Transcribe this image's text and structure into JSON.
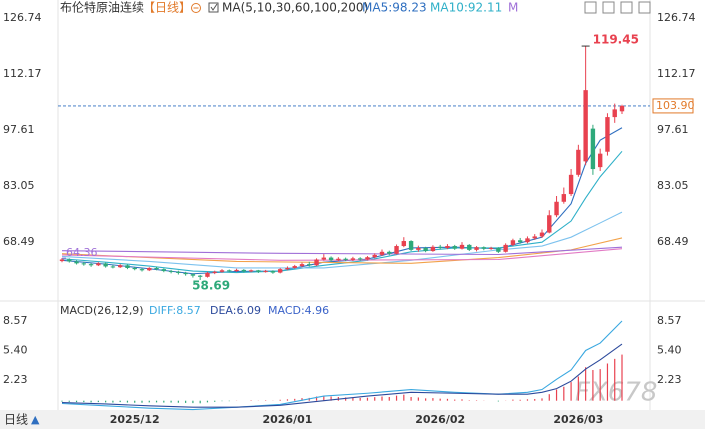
{
  "chart_data": [
    {
      "type": "candlestick",
      "title": "布伦特原油连续",
      "period": "【日线】",
      "ma_label": "MA(5,10,30,60,100,200)",
      "legend_overflow": "M",
      "categories": [
        null,
        null,
        null,
        null,
        null,
        null,
        null,
        null,
        null,
        null,
        "2025/12",
        null,
        null,
        null,
        null,
        null,
        null,
        null,
        null,
        null,
        null,
        null,
        null,
        null,
        null,
        null,
        null,
        null,
        null,
        null,
        null,
        "2026/01",
        null,
        null,
        null,
        null,
        null,
        null,
        null,
        null,
        null,
        null,
        null,
        null,
        null,
        null,
        null,
        null,
        null,
        null,
        null,
        null,
        "2026/02",
        null,
        null,
        null,
        null,
        null,
        null,
        null,
        null,
        null,
        null,
        null,
        null,
        null,
        null,
        null,
        null,
        null,
        null,
        "2026/03",
        null,
        null,
        null,
        null,
        null,
        null
      ],
      "candles": {
        "up_color": "#e8414f",
        "down_color": "#2ea97a",
        "open": [
          63.6,
          64.0,
          63.5,
          63.0,
          62.8,
          62.5,
          63.0,
          62.2,
          62.0,
          62.5,
          61.8,
          61.5,
          61.2,
          61.8,
          61.5,
          61.0,
          60.8,
          60.5,
          60.2,
          59.8,
          59.5,
          60.5,
          60.8,
          61.2,
          61.0,
          61.3,
          60.9,
          61.2,
          60.8,
          61.0,
          60.6,
          61.5,
          61.8,
          62.3,
          62.8,
          62.5,
          64.0,
          64.5,
          63.8,
          64.2,
          63.9,
          64.3,
          64.0,
          64.6,
          65.2,
          66.0,
          65.5,
          67.5,
          68.8,
          66.5,
          67.0,
          66.2,
          67.3,
          67.0,
          67.5,
          66.8,
          67.8,
          66.5,
          67.2,
          66.8,
          67.0,
          66.0,
          67.8,
          69.0,
          68.5,
          69.5,
          70.0,
          71.0,
          75.5,
          79.0,
          81.0,
          86.0,
          89.5,
          98.0,
          88.0,
          92.0,
          101.0,
          102.5
        ],
        "close": [
          64.0,
          63.5,
          63.0,
          62.8,
          62.5,
          63.0,
          62.2,
          62.0,
          62.5,
          61.8,
          61.5,
          61.2,
          61.8,
          61.5,
          61.0,
          60.8,
          60.5,
          60.2,
          59.8,
          59.5,
          60.5,
          60.8,
          61.2,
          61.0,
          61.3,
          60.9,
          61.2,
          60.8,
          61.0,
          60.6,
          61.5,
          61.8,
          62.3,
          62.8,
          62.5,
          64.0,
          64.5,
          63.8,
          64.2,
          63.9,
          64.3,
          64.0,
          64.6,
          65.2,
          66.0,
          65.5,
          67.5,
          68.8,
          66.5,
          67.0,
          66.2,
          67.3,
          67.0,
          67.5,
          66.8,
          67.8,
          66.5,
          67.2,
          66.8,
          67.0,
          66.0,
          67.8,
          69.0,
          68.5,
          69.5,
          70.0,
          71.0,
          75.5,
          79.0,
          81.0,
          86.0,
          92.5,
          108.0,
          87.5,
          91.5,
          101.0,
          103.0,
          103.9
        ],
        "high": [
          64.4,
          64.3,
          63.8,
          63.4,
          63.1,
          63.3,
          63.2,
          62.6,
          62.8,
          62.7,
          62.1,
          61.8,
          62.0,
          62.1,
          61.7,
          61.3,
          61.1,
          60.8,
          60.4,
          60.0,
          60.8,
          61.1,
          61.5,
          61.4,
          61.6,
          61.5,
          61.4,
          61.3,
          61.3,
          61.2,
          61.8,
          62.2,
          62.6,
          63.2,
          63.4,
          64.3,
          65.4,
          64.8,
          64.6,
          64.5,
          64.7,
          64.6,
          64.9,
          65.6,
          66.6,
          66.3,
          67.9,
          69.8,
          69.0,
          67.6,
          67.3,
          67.7,
          67.8,
          68.0,
          67.8,
          68.5,
          68.0,
          67.5,
          67.4,
          67.3,
          67.2,
          68.2,
          69.4,
          69.6,
          70.0,
          70.6,
          71.8,
          76.8,
          80.5,
          82.7,
          87.5,
          93.8,
          119.45,
          99.0,
          92.8,
          102.0,
          104.5,
          104.2
        ],
        "low": [
          63.3,
          63.2,
          62.7,
          62.4,
          62.1,
          62.3,
          61.9,
          61.7,
          61.8,
          61.5,
          61.2,
          60.9,
          61.0,
          61.2,
          60.7,
          60.4,
          60.1,
          59.8,
          59.3,
          58.69,
          59.3,
          60.2,
          60.6,
          60.7,
          60.8,
          60.6,
          60.7,
          60.5,
          60.6,
          60.3,
          60.4,
          61.2,
          61.6,
          62.0,
          62.2,
          62.3,
          63.7,
          63.5,
          63.5,
          63.6,
          63.6,
          63.7,
          63.8,
          64.3,
          64.9,
          65.1,
          65.3,
          67.2,
          66.2,
          66.0,
          65.9,
          66.0,
          66.6,
          66.7,
          66.5,
          66.6,
          66.2,
          66.1,
          66.4,
          66.5,
          65.7,
          65.8,
          67.5,
          68.1,
          68.2,
          69.1,
          69.6,
          70.8,
          75.0,
          78.5,
          80.5,
          85.5,
          88.5,
          86.0,
          87.0,
          91.0,
          99.5,
          101.8
        ]
      },
      "series": [
        {
          "name": "MA5:98.23",
          "color": "#2f6fc0",
          "x": [
            0,
            6,
            12,
            18,
            24,
            30,
            36,
            42,
            48,
            54,
            60,
            66,
            70,
            72,
            74,
            77
          ],
          "values": [
            63.8,
            62.8,
            61.6,
            60.3,
            60.9,
            61.0,
            63.3,
            64.1,
            67.0,
            67.2,
            66.8,
            69.8,
            78.5,
            89.0,
            95.0,
            98.23
          ]
        },
        {
          "name": "MA10:92.11",
          "color": "#2fb0c8",
          "x": [
            0,
            6,
            12,
            18,
            24,
            30,
            36,
            42,
            48,
            54,
            60,
            66,
            70,
            72,
            74,
            77
          ],
          "values": [
            64.2,
            63.3,
            62.3,
            61.0,
            60.6,
            61.0,
            62.5,
            63.8,
            66.0,
            67.0,
            67.0,
            68.5,
            74.0,
            80.0,
            85.5,
            92.11
          ]
        },
        {
          "color": "#7dc2ee",
          "x": [
            0,
            12,
            24,
            36,
            48,
            60,
            66,
            70,
            74,
            77
          ],
          "values": [
            64.8,
            63.5,
            61.8,
            61.8,
            63.8,
            66.5,
            67.5,
            69.8,
            73.5,
            76.3
          ]
        },
        {
          "color": "#f2a24a",
          "x": [
            0,
            24,
            48,
            60,
            70,
            77
          ],
          "values": [
            65.5,
            63.5,
            63.0,
            64.5,
            66.5,
            69.6
          ]
        },
        {
          "color": "#e27ac4",
          "x": [
            0,
            30,
            60,
            77
          ],
          "values": [
            65.2,
            63.8,
            64.0,
            66.8
          ]
        },
        {
          "color": "#a070d8",
          "x": [
            0,
            30,
            60,
            77
          ],
          "values": [
            66.3,
            65.6,
            65.3,
            67.2
          ]
        }
      ],
      "left_marker": 64.36,
      "left_marker_color": "#a070d8",
      "last_price": {
        "value": 103.9,
        "label": "103.90"
      },
      "last_price_color": "#e27a2a",
      "ylim": [
        54.0,
        128.82
      ],
      "yticks": [
        126.74,
        112.17,
        97.61,
        83.05,
        68.49
      ],
      "grid": false
    },
    {
      "type": "macd",
      "title": "MACD(26,12,9)",
      "histogram": {
        "name": "MACD:4.96",
        "color": "#3a62c8",
        "up_color": "#e8414f",
        "down_color": "#2ea97a",
        "values": [
          -0.1,
          -0.12,
          -0.15,
          -0.15,
          -0.18,
          -0.15,
          -0.18,
          -0.2,
          -0.15,
          -0.2,
          -0.22,
          -0.22,
          -0.18,
          -0.18,
          -0.2,
          -0.2,
          -0.22,
          -0.24,
          -0.26,
          -0.28,
          -0.18,
          -0.12,
          -0.05,
          -0.05,
          0.02,
          0.0,
          0.05,
          0.02,
          0.05,
          0.02,
          0.1,
          0.15,
          0.2,
          0.28,
          0.3,
          0.45,
          0.5,
          0.45,
          0.4,
          0.35,
          0.35,
          0.3,
          0.32,
          0.38,
          0.45,
          0.4,
          0.55,
          0.65,
          0.4,
          0.35,
          0.25,
          0.28,
          0.22,
          0.2,
          0.12,
          0.15,
          0.05,
          0.05,
          0.02,
          0.0,
          -0.08,
          0.02,
          0.12,
          0.1,
          0.15,
          0.18,
          0.25,
          0.7,
          1.2,
          1.5,
          2.0,
          2.6,
          3.6,
          3.3,
          3.4,
          4.0,
          4.5,
          4.96
        ]
      },
      "series": [
        {
          "name": "DIFF:8.57",
          "color": "#3aa8e0",
          "x": [
            0,
            6,
            12,
            18,
            24,
            30,
            36,
            42,
            48,
            54,
            60,
            64,
            66,
            68,
            70,
            72,
            74,
            77
          ],
          "values": [
            -0.3,
            -0.55,
            -0.8,
            -0.95,
            -0.7,
            -0.4,
            0.5,
            0.8,
            1.2,
            0.9,
            0.7,
            0.9,
            1.2,
            2.3,
            3.3,
            5.4,
            6.2,
            8.57
          ]
        },
        {
          "name": "DEA:6.09",
          "color": "#2c4a9c",
          "x": [
            0,
            6,
            12,
            18,
            24,
            30,
            36,
            42,
            48,
            54,
            60,
            64,
            66,
            68,
            70,
            72,
            74,
            77
          ],
          "values": [
            -0.2,
            -0.35,
            -0.55,
            -0.7,
            -0.7,
            -0.5,
            0.0,
            0.5,
            0.9,
            0.8,
            0.7,
            0.7,
            0.9,
            1.3,
            2.1,
            3.4,
            4.4,
            6.09
          ]
        }
      ],
      "ylim": [
        -1.0,
        9.54
      ],
      "yticks": [
        8.57,
        {
          "value": 5.4,
          "label": "5.40"
        },
        2.23
      ]
    }
  ],
  "footer": {
    "period": "日线",
    "toggle": "▲"
  },
  "watermark": "FX678"
}
